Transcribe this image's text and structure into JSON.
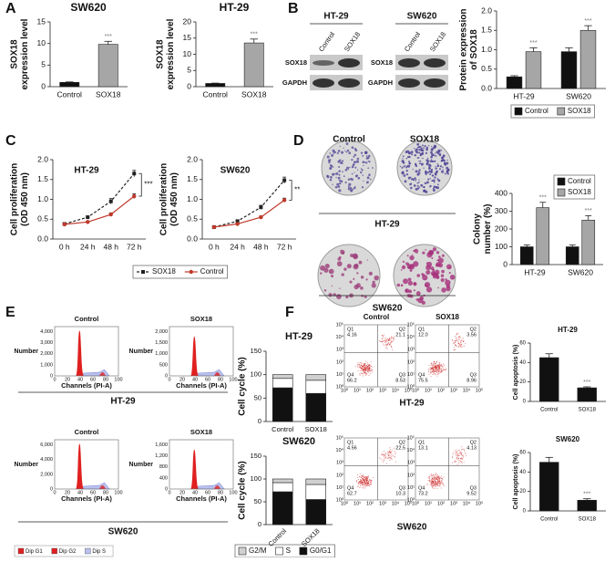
{
  "chart_data": [
    {
      "type": "bar",
      "title": "SW620",
      "ylabel": [
        "SOX18",
        "expression level"
      ],
      "categories": [
        "Control",
        "SOX18"
      ],
      "values": [
        1.0,
        9.8
      ],
      "errors": [
        0.1,
        0.7
      ],
      "colors": [
        "#111111",
        "#a6a6a6"
      ],
      "significance": [
        null,
        "***"
      ],
      "ylim": [
        0,
        15
      ],
      "yticks": [
        0,
        5,
        10,
        15
      ]
    },
    {
      "type": "bar",
      "title": "HT-29",
      "ylabel": [
        "SOX18",
        "expression level"
      ],
      "categories": [
        "Control",
        "SOX18"
      ],
      "values": [
        1.0,
        13.5
      ],
      "errors": [
        0.1,
        1.2
      ],
      "colors": [
        "#111111",
        "#a6a6a6"
      ],
      "significance": [
        null,
        "***"
      ],
      "ylim": [
        0,
        20
      ],
      "yticks": [
        0,
        5,
        10,
        15,
        20
      ]
    },
    {
      "type": "bar",
      "ylabel": [
        "Protein expression",
        "of SOX18"
      ],
      "categories": [
        "HT-29",
        "SW620"
      ],
      "series": [
        {
          "name": "Control",
          "color": "#111111",
          "values": [
            0.3,
            0.95
          ],
          "errors": [
            0.03,
            0.1
          ]
        },
        {
          "name": "SOX18",
          "color": "#a6a6a6",
          "values": [
            0.95,
            1.5
          ],
          "errors": [
            0.1,
            0.12
          ],
          "significance": [
            "***",
            "***"
          ]
        }
      ],
      "ylim": [
        0,
        2
      ],
      "yticks": [
        {
          "value": 0,
          "label": "0.0"
        },
        {
          "value": 0.5,
          "label": "0.5"
        },
        {
          "value": 1,
          "label": "1.0"
        },
        {
          "value": 1.5,
          "label": "1.5"
        },
        {
          "value": 2,
          "label": "2.0"
        }
      ],
      "legend": "bottom"
    },
    {
      "type": "line",
      "title": "HT-29",
      "ylabel": [
        "Cell proliferation",
        "(OD 450 nm)"
      ],
      "categories": [
        "0 h",
        "24 h",
        "48 h",
        "72 h"
      ],
      "series": [
        {
          "name": "SOX18",
          "color": "#222222",
          "dash": true,
          "marker": "square",
          "values": [
            0.38,
            0.55,
            0.95,
            1.65
          ],
          "errors": [
            0.02,
            0.03,
            0.07,
            0.08
          ]
        },
        {
          "name": "Control",
          "color": "#c0392b",
          "marker": "circle",
          "values": [
            0.37,
            0.43,
            0.62,
            1.08
          ],
          "errors": [
            0.02,
            0.02,
            0.04,
            0.06
          ]
        }
      ],
      "ylim": [
        0,
        2
      ],
      "yticks": [
        {
          "value": 0,
          "label": "0.0"
        },
        {
          "value": 0.5,
          "label": "0.5"
        },
        {
          "value": 1,
          "label": "1.0"
        },
        {
          "value": 1.5,
          "label": "1.5"
        },
        {
          "value": 2,
          "label": "2.0"
        }
      ],
      "annotation": "***",
      "legend": "bottom"
    },
    {
      "type": "line",
      "title": "SW620",
      "ylabel": [
        "Cell proliferation",
        "(OD 450 nm)"
      ],
      "categories": [
        "0 h",
        "24 h",
        "48 h",
        "72 h"
      ],
      "series": [
        {
          "color": "#222222",
          "dash": true,
          "marker": "square",
          "values": [
            0.3,
            0.45,
            0.8,
            1.48
          ],
          "errors": [
            0.02,
            0.03,
            0.05,
            0.08
          ]
        },
        {
          "color": "#c0392b",
          "marker": "circle",
          "values": [
            0.3,
            0.38,
            0.55,
            0.98
          ],
          "errors": [
            0.02,
            0.02,
            0.03,
            0.05
          ]
        }
      ],
      "ylim": [
        0,
        2
      ],
      "yticks": [
        {
          "value": 0,
          "label": "0.0"
        },
        {
          "value": 0.5,
          "label": "0.5"
        },
        {
          "value": 1,
          "label": "1.0"
        },
        {
          "value": 1.5,
          "label": "1.5"
        },
        {
          "value": 2,
          "label": "2.0"
        }
      ],
      "annotation": "**"
    },
    {
      "type": "bar",
      "ylabel": [
        "Colony",
        "number (%)"
      ],
      "categories": [
        "HT-29",
        "SW620"
      ],
      "series": [
        {
          "name": "Control",
          "color": "#111111",
          "values": [
            100,
            100
          ],
          "errors": [
            10,
            10
          ]
        },
        {
          "name": "SOX18",
          "color": "#a6a6a6",
          "values": [
            320,
            250
          ],
          "errors": [
            30,
            25
          ],
          "significance": [
            "***",
            "***"
          ]
        }
      ],
      "ylim": [
        0,
        400
      ],
      "yticks": [
        0,
        100,
        200,
        300,
        400
      ],
      "legend": "top-right"
    },
    {
      "type": "bar",
      "stacked": true,
      "title": "HT-29",
      "ylabel": [
        "Cell cycle (%)"
      ],
      "categories": [
        "Control",
        "SOX18"
      ],
      "series": [
        {
          "color": "#111111",
          "values": [
            72,
            60
          ]
        },
        {
          "color": "#ffffff",
          "values": [
            20,
            28
          ]
        },
        {
          "color": "#d0d0d0",
          "values": [
            8,
            12
          ]
        }
      ],
      "ylim": [
        0,
        150
      ],
      "yticks": [
        0,
        50,
        100,
        150
      ]
    },
    {
      "type": "bar",
      "stacked": true,
      "title": "SW620",
      "ylabel": [
        "Cell cycle (%)"
      ],
      "categories": [
        "Control",
        "SOX18"
      ],
      "rotate_xlabels": true,
      "series": [
        {
          "name": "G0/G1",
          "color": "#111111",
          "values": [
            72,
            55
          ]
        },
        {
          "name": "S",
          "color": "#ffffff",
          "values": [
            20,
            33
          ]
        },
        {
          "name": "G2/M",
          "color": "#d0d0d0",
          "values": [
            8,
            12
          ]
        }
      ],
      "ylim": [
        0,
        150
      ],
      "yticks": [
        0,
        50,
        100,
        150
      ],
      "legend": "bottom"
    },
    {
      "type": "bar",
      "title": "HT-29",
      "ylabel": [
        "Cell apoptosis (%)"
      ],
      "categories": [
        "Control",
        "SOX18"
      ],
      "values": [
        45,
        14
      ],
      "errors": [
        4,
        1
      ],
      "colors": [
        "#111111",
        "#111111"
      ],
      "significance": [
        null,
        "***"
      ],
      "ylim": [
        0,
        60
      ],
      "yticks": [
        0,
        20,
        40,
        60
      ]
    },
    {
      "type": "bar",
      "title": "SW620",
      "ylabel": [
        "Cell apoptosis (%)"
      ],
      "categories": [
        "Control",
        "SOX18"
      ],
      "values": [
        50,
        11
      ],
      "errors": [
        5,
        1.5
      ],
      "colors": [
        "#111111",
        "#111111"
      ],
      "significance": [
        null,
        "***"
      ],
      "ylim": [
        0,
        60
      ],
      "yticks": [
        0,
        20,
        40,
        60
      ]
    }
  ],
  "figure": {
    "panel_letters": [
      "A",
      "B",
      "C",
      "D",
      "E",
      "F"
    ],
    "blot": {
      "cell_lines": [
        "HT-29",
        "SW620"
      ],
      "lanes": [
        "Control",
        "SOX18"
      ],
      "proteins": [
        "SOX18",
        "GAPDH"
      ]
    },
    "colony": {
      "columns": [
        "Control",
        "SOX18"
      ],
      "rows": [
        "HT-29",
        "SW620"
      ]
    },
    "histograms": {
      "columns": [
        "Control",
        "SOX18"
      ],
      "rows": [
        "HT-29",
        "SW620"
      ],
      "ylabel": "Number",
      "xlabel": "Channels (PI-A)",
      "yticks": [
        [
          [
            "0",
            "1,000",
            "2,000",
            "3,000",
            "4,000"
          ],
          [
            "0",
            "500",
            "1,000",
            "1,500",
            "2,000"
          ]
        ],
        [
          [
            "0",
            "2,000",
            "4,000",
            "6,000"
          ],
          [
            "0",
            "400",
            "800",
            "1,200",
            "1,600"
          ]
        ]
      ],
      "xticks": [
        "0",
        "20",
        "40",
        "60",
        "80",
        "100"
      ],
      "legend": [
        "Dip G1",
        "Dip G2",
        "Dip S"
      ]
    },
    "flow": {
      "columns": [
        "Control",
        "SOX18"
      ],
      "rows": [
        "HT-29",
        "SW620"
      ],
      "quadrants": [
        "Q1",
        "Q2",
        "Q3",
        "Q4"
      ],
      "values": [
        [
          [
            "4.16",
            "21.1",
            "8.53",
            "66.2"
          ],
          [
            "12.0",
            "3.56",
            "8.96",
            "75.5"
          ]
        ],
        [
          [
            "4.56",
            "22.5",
            "10.3",
            "62.7"
          ],
          [
            "13.1",
            "4.13",
            "9.52",
            "73.2"
          ]
        ]
      ],
      "ticks": [
        "10⁰",
        "10¹",
        "10²",
        "10³",
        "10⁴",
        "10⁵"
      ]
    }
  }
}
